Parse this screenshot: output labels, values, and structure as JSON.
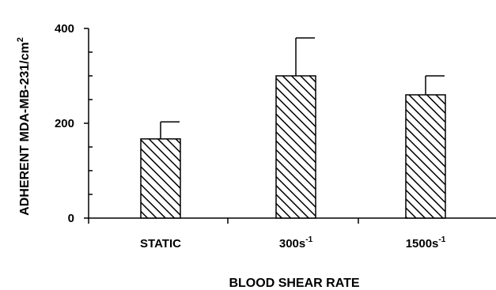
{
  "chart_data": {
    "type": "bar",
    "xlabel": "BLOOD SHEAR RATE",
    "ylabel": {
      "base": "ADHERENT MDA-MB-231/cm",
      "sup": "2"
    },
    "ylim": [
      0,
      400
    ],
    "yticks": [
      0,
      200,
      400
    ],
    "categories": [
      {
        "base": "STATIC",
        "sup": ""
      },
      {
        "base": "300s",
        "sup": "-1"
      },
      {
        "base": "1500s",
        "sup": "-1"
      }
    ],
    "values": [
      167,
      300,
      260
    ],
    "error_upper": [
      203,
      380,
      300
    ],
    "bar_fill": "diagonal-hatch",
    "grid": false,
    "legend": "none",
    "colors": {
      "ink": "#000000",
      "background": "#ffffff"
    }
  }
}
